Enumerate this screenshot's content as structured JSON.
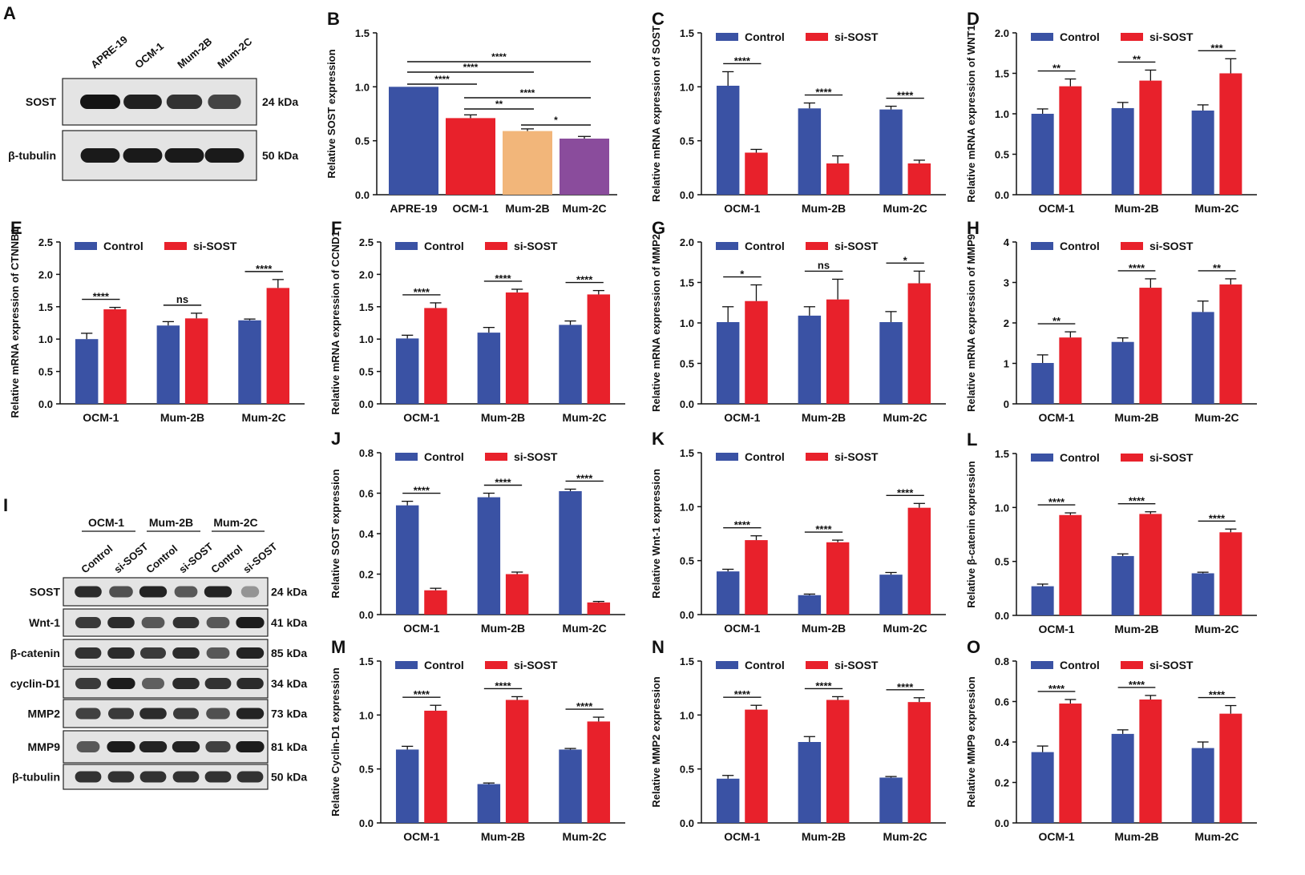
{
  "colors": {
    "control": "#3a52a4",
    "sisost": "#e8212b",
    "b1": "#3a52a4",
    "b2": "#e8212b",
    "b3": "#f2b67a",
    "b4": "#8a4c9c"
  },
  "legend": {
    "control": "Control",
    "sisost": "si-SOST"
  },
  "blotA": {
    "letter": "A",
    "lanes": [
      "APRE-19",
      "OCM-1",
      "Mum-2B",
      "Mum-2C"
    ],
    "rows": [
      {
        "label": "SOST",
        "kda": "24 kDa",
        "intensities": [
          1.0,
          0.9,
          0.75,
          0.6
        ]
      },
      {
        "label": "β-tubulin",
        "kda": "50 kDa",
        "intensities": [
          0.95,
          0.95,
          0.95,
          0.95
        ]
      }
    ]
  },
  "blotI": {
    "letter": "I",
    "groups": [
      "OCM-1",
      "Mum-2B",
      "Mum-2C"
    ],
    "lanes": [
      "Control",
      "si-SOST",
      "Control",
      "si-SOST",
      "Control",
      "si-SOST"
    ],
    "rows": [
      {
        "label": "SOST",
        "kda": "24 kDa",
        "intensities": [
          0.85,
          0.6,
          0.9,
          0.55,
          0.9,
          0.15
        ]
      },
      {
        "label": "Wnt-1",
        "kda": "41 kDa",
        "intensities": [
          0.75,
          0.85,
          0.55,
          0.8,
          0.55,
          0.95
        ]
      },
      {
        "label": "β-catenin",
        "kda": "85 kDa",
        "intensities": [
          0.8,
          0.85,
          0.75,
          0.85,
          0.55,
          0.9
        ]
      },
      {
        "label": "cyclin-D1",
        "kda": "34 kDa",
        "intensities": [
          0.75,
          0.95,
          0.5,
          0.85,
          0.8,
          0.85
        ]
      },
      {
        "label": "MMP2",
        "kda": "73 kDa",
        "intensities": [
          0.7,
          0.75,
          0.85,
          0.75,
          0.6,
          0.9
        ]
      },
      {
        "label": "MMP9",
        "kda": "81 kDa",
        "intensities": [
          0.55,
          0.95,
          0.9,
          0.9,
          0.7,
          0.95
        ]
      },
      {
        "label": "β-tubulin",
        "kda": "50 kDa",
        "intensities": [
          0.8,
          0.8,
          0.8,
          0.8,
          0.8,
          0.8
        ]
      }
    ]
  },
  "chart_data": [
    {
      "id": "B",
      "letter": "B",
      "type": "bar",
      "ylabel": "Relative SOST expression",
      "ylim": [
        0,
        1.5
      ],
      "yticks": [
        "0.0",
        "0.5",
        "1.0",
        "1.5"
      ],
      "categories": [
        "APRE-19",
        "OCM-1",
        "Mum-2B",
        "Mum-2C"
      ],
      "values": [
        1.0,
        0.71,
        0.59,
        0.52
      ],
      "errors": [
        0.0,
        0.03,
        0.02,
        0.02
      ],
      "brackets": [
        {
          "from": 0,
          "to": 1,
          "label": "****"
        },
        {
          "from": 0,
          "to": 2,
          "label": "****"
        },
        {
          "from": 0,
          "to": 3,
          "label": "****"
        },
        {
          "from": 1,
          "to": 2,
          "label": "**"
        },
        {
          "from": 1,
          "to": 3,
          "label": "****"
        },
        {
          "from": 2,
          "to": 3,
          "label": "*"
        }
      ]
    },
    {
      "id": "C",
      "letter": "C",
      "type": "bar",
      "ylabel": "Relative mRNA expression of SOST",
      "ylim": [
        0,
        1.5
      ],
      "yticks": [
        "0.0",
        "0.5",
        "1.0",
        "1.5"
      ],
      "categories": [
        "OCM-1",
        "Mum-2B",
        "Mum-2C"
      ],
      "series": [
        {
          "name": "Control",
          "values": [
            1.01,
            0.8,
            0.79
          ],
          "errors": [
            0.13,
            0.05,
            0.03
          ]
        },
        {
          "name": "si-SOST",
          "values": [
            0.39,
            0.29,
            0.29
          ],
          "errors": [
            0.03,
            0.07,
            0.03
          ]
        }
      ],
      "sig": [
        "****",
        "****",
        "****"
      ]
    },
    {
      "id": "D",
      "letter": "D",
      "type": "bar",
      "ylabel": "Relative mRNA expression of WNT1",
      "ylim": [
        0,
        2.0
      ],
      "yticks": [
        "0.0",
        "0.5",
        "1.0",
        "1.5",
        "2.0"
      ],
      "categories": [
        "OCM-1",
        "Mum-2B",
        "Mum-2C"
      ],
      "series": [
        {
          "name": "Control",
          "values": [
            1.0,
            1.07,
            1.04
          ],
          "errors": [
            0.06,
            0.07,
            0.07
          ]
        },
        {
          "name": "si-SOST",
          "values": [
            1.34,
            1.41,
            1.5
          ],
          "errors": [
            0.09,
            0.13,
            0.18
          ]
        }
      ],
      "sig": [
        "**",
        "**",
        "***"
      ]
    },
    {
      "id": "E",
      "letter": "E",
      "type": "bar",
      "ylabel": "Relative mRNA expression of CTNNB1",
      "ylim": [
        0,
        2.5
      ],
      "yticks": [
        "0.0",
        "0.5",
        "1.0",
        "1.5",
        "2.0",
        "2.5"
      ],
      "categories": [
        "OCM-1",
        "Mum-2B",
        "Mum-2C"
      ],
      "series": [
        {
          "name": "Control",
          "values": [
            1.0,
            1.21,
            1.29
          ],
          "errors": [
            0.09,
            0.06,
            0.02
          ]
        },
        {
          "name": "si-SOST",
          "values": [
            1.46,
            1.32,
            1.79
          ],
          "errors": [
            0.03,
            0.08,
            0.13
          ]
        }
      ],
      "sig": [
        "****",
        "ns",
        "****"
      ]
    },
    {
      "id": "F",
      "letter": "F",
      "type": "bar",
      "ylabel": "Relative mRNA expression of CCND1",
      "ylim": [
        0,
        2.5
      ],
      "yticks": [
        "0.0",
        "0.5",
        "1.0",
        "1.5",
        "2.0",
        "2.5"
      ],
      "categories": [
        "OCM-1",
        "Mum-2B",
        "Mum-2C"
      ],
      "series": [
        {
          "name": "Control",
          "values": [
            1.01,
            1.1,
            1.22
          ],
          "errors": [
            0.05,
            0.08,
            0.06
          ]
        },
        {
          "name": "si-SOST",
          "values": [
            1.48,
            1.72,
            1.69
          ],
          "errors": [
            0.08,
            0.05,
            0.06
          ]
        }
      ],
      "sig": [
        "****",
        "****",
        "****"
      ]
    },
    {
      "id": "G",
      "letter": "G",
      "type": "bar",
      "ylabel": "Relative mRNA expression of MMP2",
      "ylim": [
        0,
        2.0
      ],
      "yticks": [
        "0.0",
        "0.5",
        "1.0",
        "1.5",
        "2.0"
      ],
      "categories": [
        "OCM-1",
        "Mum-2B",
        "Mum-2C"
      ],
      "series": [
        {
          "name": "Control",
          "values": [
            1.01,
            1.09,
            1.01
          ],
          "errors": [
            0.19,
            0.11,
            0.13
          ]
        },
        {
          "name": "si-SOST",
          "values": [
            1.27,
            1.29,
            1.49
          ],
          "errors": [
            0.2,
            0.25,
            0.15
          ]
        }
      ],
      "sig": [
        "*",
        "ns",
        "*"
      ]
    },
    {
      "id": "H",
      "letter": "H",
      "type": "bar",
      "ylabel": "Relative mRNA expression of MMP9",
      "ylim": [
        0,
        4
      ],
      "yticks": [
        "0",
        "1",
        "2",
        "3",
        "4"
      ],
      "categories": [
        "OCM-1",
        "Mum-2B",
        "Mum-2C"
      ],
      "series": [
        {
          "name": "Control",
          "values": [
            1.01,
            1.53,
            2.27
          ],
          "errors": [
            0.2,
            0.1,
            0.27
          ]
        },
        {
          "name": "si-SOST",
          "values": [
            1.64,
            2.87,
            2.95
          ],
          "errors": [
            0.14,
            0.22,
            0.14
          ]
        }
      ],
      "sig": [
        "**",
        "****",
        "**"
      ]
    },
    {
      "id": "J",
      "letter": "J",
      "type": "bar",
      "ylabel": "Relative SOST expression",
      "ylim": [
        0,
        0.8
      ],
      "yticks": [
        "0.0",
        "0.2",
        "0.4",
        "0.6",
        "0.8"
      ],
      "categories": [
        "OCM-1",
        "Mum-2B",
        "Mum-2C"
      ],
      "series": [
        {
          "name": "Control",
          "values": [
            0.54,
            0.58,
            0.61
          ],
          "errors": [
            0.02,
            0.02,
            0.01
          ]
        },
        {
          "name": "si-SOST",
          "values": [
            0.12,
            0.2,
            0.06
          ],
          "errors": [
            0.01,
            0.01,
            0.005
          ]
        }
      ],
      "sig": [
        "****",
        "****",
        "****"
      ]
    },
    {
      "id": "K",
      "letter": "K",
      "type": "bar",
      "ylabel": "Relative Wnt-1 expression",
      "ylim": [
        0,
        1.5
      ],
      "yticks": [
        "0.0",
        "0.5",
        "1.0",
        "1.5"
      ],
      "categories": [
        "OCM-1",
        "Mum-2B",
        "Mum-2C"
      ],
      "series": [
        {
          "name": "Control",
          "values": [
            0.4,
            0.18,
            0.37
          ],
          "errors": [
            0.02,
            0.01,
            0.02
          ]
        },
        {
          "name": "si-SOST",
          "values": [
            0.69,
            0.67,
            0.99
          ],
          "errors": [
            0.04,
            0.02,
            0.04
          ]
        }
      ],
      "sig": [
        "****",
        "****",
        "****"
      ]
    },
    {
      "id": "L",
      "letter": "L",
      "type": "bar",
      "ylabel": "Relative β-catenin expression",
      "ylim": [
        0,
        1.5
      ],
      "yticks": [
        "0.0",
        "0.5",
        "1.0",
        "1.5"
      ],
      "categories": [
        "OCM-1",
        "Mum-2B",
        "Mum-2C"
      ],
      "series": [
        {
          "name": "Control",
          "values": [
            0.27,
            0.55,
            0.39
          ],
          "errors": [
            0.02,
            0.02,
            0.01
          ]
        },
        {
          "name": "si-SOST",
          "values": [
            0.93,
            0.94,
            0.77
          ],
          "errors": [
            0.02,
            0.02,
            0.03
          ]
        }
      ],
      "sig": [
        "****",
        "****",
        "****"
      ]
    },
    {
      "id": "M",
      "letter": "M",
      "type": "bar",
      "ylabel": "Relative Cyclin-D1 expression",
      "ylim": [
        0,
        1.5
      ],
      "yticks": [
        "0.0",
        "0.5",
        "1.0",
        "1.5"
      ],
      "categories": [
        "OCM-1",
        "Mum-2B",
        "Mum-2C"
      ],
      "series": [
        {
          "name": "Control",
          "values": [
            0.68,
            0.36,
            0.68
          ],
          "errors": [
            0.03,
            0.01,
            0.01
          ]
        },
        {
          "name": "si-SOST",
          "values": [
            1.04,
            1.14,
            0.94
          ],
          "errors": [
            0.05,
            0.03,
            0.04
          ]
        }
      ],
      "sig": [
        "****",
        "****",
        "****"
      ]
    },
    {
      "id": "N",
      "letter": "N",
      "type": "bar",
      "ylabel": "Relative MMP2 expression",
      "ylim": [
        0,
        1.5
      ],
      "yticks": [
        "0.0",
        "0.5",
        "1.0",
        "1.5"
      ],
      "categories": [
        "OCM-1",
        "Mum-2B",
        "Mum-2C"
      ],
      "series": [
        {
          "name": "Control",
          "values": [
            0.41,
            0.75,
            0.42
          ],
          "errors": [
            0.03,
            0.05,
            0.01
          ]
        },
        {
          "name": "si-SOST",
          "values": [
            1.05,
            1.14,
            1.12
          ],
          "errors": [
            0.04,
            0.03,
            0.04
          ]
        }
      ],
      "sig": [
        "****",
        "****",
        "****"
      ]
    },
    {
      "id": "O",
      "letter": "O",
      "type": "bar",
      "ylabel": "Relative MMP9 expression",
      "ylim": [
        0,
        0.8
      ],
      "yticks": [
        "0.0",
        "0.2",
        "0.4",
        "0.6",
        "0.8"
      ],
      "categories": [
        "OCM-1",
        "Mum-2B",
        "Mum-2C"
      ],
      "series": [
        {
          "name": "Control",
          "values": [
            0.35,
            0.44,
            0.37
          ],
          "errors": [
            0.03,
            0.02,
            0.03
          ]
        },
        {
          "name": "si-SOST",
          "values": [
            0.59,
            0.61,
            0.54
          ],
          "errors": [
            0.02,
            0.02,
            0.04
          ]
        }
      ],
      "sig": [
        "****",
        "****",
        "****"
      ]
    }
  ]
}
